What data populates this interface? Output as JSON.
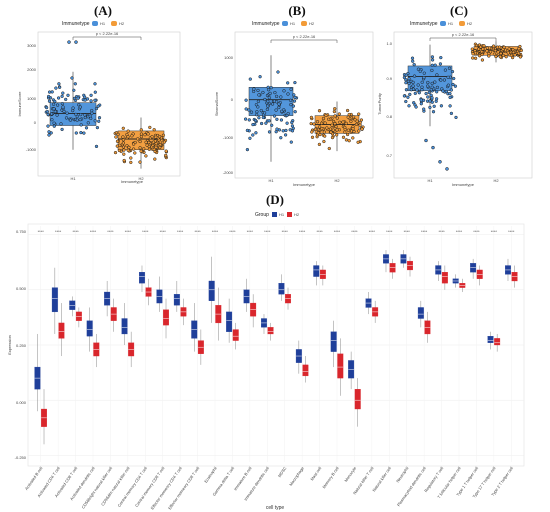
{
  "panels": {
    "A": {
      "label": "(A)",
      "legend_title": "Immunetype",
      "legend_items": [
        "H1",
        "H2"
      ],
      "pvalue": "p < 2.22e-16",
      "xlabel": "Immunetype",
      "ylabel": "ImmuneScore",
      "yticks": [
        "3000",
        "2000",
        "1000",
        "0",
        "-1000"
      ]
    },
    "B": {
      "label": "(B)",
      "legend_title": "Immunetype",
      "legend_items": [
        "H1",
        "H2"
      ],
      "pvalue": "p < 2.22e-16",
      "xlabel": "Immunetype",
      "ylabel": "StromalScore",
      "yticks": [
        "1000",
        "0",
        "-1000",
        "-2000"
      ]
    },
    "C": {
      "label": "(C)",
      "legend_title": "Immunetype",
      "legend_items": [
        "H1",
        "H2"
      ],
      "pvalue": "p < 2.22e-16",
      "xlabel": "Immunetype",
      "ylabel": "TumorPurity",
      "yticks": [
        "1.0",
        "0.9",
        "0.8",
        "0.7"
      ]
    },
    "D": {
      "label": "(D)",
      "legend_title": "Group",
      "legend_items": [
        "H1",
        "H2"
      ],
      "xlabel": "cell type",
      "ylabel": "Expression",
      "yticks": [
        "0.750",
        "0.500",
        "0.250",
        "0.000",
        "-0.250"
      ]
    }
  },
  "colors": {
    "A_H1": "#4a90d9",
    "A_H2": "#f29b38",
    "D_H1": "#1f3f9a",
    "D_H2": "#d9262c"
  },
  "chart_data": [
    {
      "type": "box",
      "panel": "A",
      "categories": [
        "H1",
        "H2"
      ],
      "title": "",
      "xlabel": "Immunetype",
      "ylabel": "ImmuneScore",
      "ylim": [
        -2000,
        3200
      ],
      "annotation": "p < 2.22e-16",
      "series": [
        {
          "name": "H1",
          "q1": -200,
          "median": 250,
          "q3": 650,
          "whisker_low": -1100,
          "whisker_high": 1800,
          "outliers": [
            2900,
            2900
          ]
        },
        {
          "name": "H2",
          "q1": -1100,
          "median": -700,
          "q3": -400,
          "whisker_low": -1800,
          "whisker_high": 100,
          "outliers": []
        }
      ]
    },
    {
      "type": "box",
      "panel": "B",
      "categories": [
        "H1",
        "H2"
      ],
      "title": "",
      "xlabel": "Immunetype",
      "ylabel": "StromalScore",
      "ylim": [
        -2600,
        1400
      ],
      "annotation": "p < 2.22e-16",
      "series": [
        {
          "name": "H1",
          "q1": -900,
          "median": -450,
          "q3": -100,
          "whisker_low": -2200,
          "whisker_high": 800,
          "outliers": []
        },
        {
          "name": "H2",
          "q1": -1400,
          "median": -1150,
          "q3": -900,
          "whisker_low": -1900,
          "whisker_high": -500,
          "outliers": []
        }
      ]
    },
    {
      "type": "box",
      "panel": "C",
      "categories": [
        "H1",
        "H2"
      ],
      "title": "",
      "xlabel": "Immunetype",
      "ylabel": "TumorPurity",
      "ylim": [
        0.62,
        1.02
      ],
      "annotation": "p < 2.22e-16",
      "series": [
        {
          "name": "H1",
          "q1": 0.86,
          "median": 0.9,
          "q3": 0.93,
          "whisker_low": 0.76,
          "whisker_high": 0.99,
          "outliers": [
            0.72,
            0.7,
            0.66,
            0.64
          ]
        },
        {
          "name": "H2",
          "q1": 0.96,
          "median": 0.975,
          "q3": 0.985,
          "whisker_low": 0.94,
          "whisker_high": 1.0,
          "outliers": []
        }
      ]
    },
    {
      "type": "box",
      "panel": "D",
      "xlabel": "cell type",
      "ylabel": "Expression",
      "ylim": [
        -0.28,
        0.78
      ],
      "series_names": [
        "H1",
        "H2"
      ],
      "categories": [
        "Activated B cell",
        "Activated CD4 T cell",
        "Activated CD8 T cell",
        "Activated dendritic cell",
        "CD56bright natural killer cell",
        "CD56dim natural killer cell",
        "Central memory CD4 T cell",
        "Central memory CD8 T cell",
        "Effector memeory CD4 T cell",
        "Effector memeory CD8 T cell",
        "Eosinophil",
        "Gamma delta T cell",
        "Immature B cell",
        "Immature dendritic cell",
        "MDSC",
        "Macrophage",
        "Mast cell",
        "Memory B cell",
        "Monocyte",
        "Natural killer T cell",
        "Natural killer cell",
        "Neutrophil",
        "Plasmacytoid dendritic cell",
        "Regulatory T cell",
        "T follicular helper cell",
        "Type 1 T helper cell",
        "Type 17 T helper cell",
        "Type 2 T helper cell"
      ],
      "significance": [
        "****",
        "****",
        "****",
        "****",
        "****",
        "****",
        "****",
        "****",
        "****",
        "****",
        "****",
        "****",
        "****",
        "****",
        "****",
        "****",
        "****",
        "****",
        "****",
        "****",
        "****",
        "****",
        "****",
        "****",
        "****",
        "****",
        "****",
        "****"
      ],
      "H1": [
        [
          0.05,
          0.1,
          0.15,
          -0.05,
          0.3
        ],
        [
          0.4,
          0.46,
          0.51,
          0.3,
          0.6
        ],
        [
          0.41,
          0.43,
          0.45,
          0.38,
          0.47
        ],
        [
          0.29,
          0.32,
          0.36,
          0.22,
          0.42
        ],
        [
          0.43,
          0.46,
          0.49,
          0.38,
          0.54
        ],
        [
          0.3,
          0.33,
          0.37,
          0.25,
          0.44
        ],
        [
          0.53,
          0.56,
          0.58,
          0.49,
          0.61
        ],
        [
          0.44,
          0.47,
          0.5,
          0.4,
          0.56
        ],
        [
          0.43,
          0.46,
          0.48,
          0.4,
          0.54
        ],
        [
          0.28,
          0.32,
          0.36,
          0.22,
          0.44
        ],
        [
          0.45,
          0.5,
          0.54,
          0.35,
          0.65
        ],
        [
          0.31,
          0.36,
          0.4,
          0.26,
          0.46
        ],
        [
          0.44,
          0.47,
          0.5,
          0.4,
          0.55
        ],
        [
          0.33,
          0.35,
          0.37,
          0.3,
          0.39
        ],
        [
          0.48,
          0.5,
          0.53,
          0.45,
          0.57
        ],
        [
          0.17,
          0.2,
          0.23,
          0.12,
          0.27
        ],
        [
          0.56,
          0.59,
          0.61,
          0.52,
          0.63
        ],
        [
          0.22,
          0.27,
          0.31,
          0.15,
          0.36
        ],
        [
          0.1,
          0.14,
          0.18,
          0.05,
          0.22
        ],
        [
          0.42,
          0.44,
          0.46,
          0.39,
          0.49
        ],
        [
          0.62,
          0.64,
          0.66,
          0.58,
          0.68
        ],
        [
          0.62,
          0.64,
          0.66,
          0.6,
          0.68
        ],
        [
          0.37,
          0.39,
          0.42,
          0.33,
          0.45
        ],
        [
          0.57,
          0.59,
          0.61,
          0.54,
          0.63
        ],
        [
          0.53,
          0.54,
          0.55,
          0.51,
          0.57
        ],
        [
          0.58,
          0.6,
          0.62,
          0.55,
          0.64
        ],
        [
          0.26,
          0.27,
          0.29,
          0.23,
          0.31
        ],
        [
          0.57,
          0.59,
          0.61,
          0.54,
          0.64
        ]
      ],
      "H2": [
        [
          -0.12,
          -0.08,
          -0.04,
          -0.2,
          0.05
        ],
        [
          0.28,
          0.31,
          0.35,
          0.2,
          0.44
        ],
        [
          0.36,
          0.38,
          0.4,
          0.33,
          0.42
        ],
        [
          0.2,
          0.23,
          0.26,
          0.15,
          0.3
        ],
        [
          0.36,
          0.39,
          0.42,
          0.31,
          0.46
        ],
        [
          0.2,
          0.23,
          0.26,
          0.15,
          0.31
        ],
        [
          0.47,
          0.49,
          0.51,
          0.43,
          0.55
        ],
        [
          0.34,
          0.37,
          0.41,
          0.28,
          0.46
        ],
        [
          0.38,
          0.4,
          0.42,
          0.34,
          0.46
        ],
        [
          0.21,
          0.24,
          0.27,
          0.16,
          0.32
        ],
        [
          0.35,
          0.39,
          0.43,
          0.27,
          0.51
        ],
        [
          0.27,
          0.29,
          0.32,
          0.23,
          0.35
        ],
        [
          0.38,
          0.41,
          0.44,
          0.33,
          0.48
        ],
        [
          0.3,
          0.31,
          0.33,
          0.27,
          0.35
        ],
        [
          0.44,
          0.46,
          0.48,
          0.41,
          0.51
        ],
        [
          0.11,
          0.13,
          0.16,
          0.08,
          0.2
        ],
        [
          0.55,
          0.57,
          0.59,
          0.52,
          0.61
        ],
        [
          0.1,
          0.15,
          0.21,
          0.02,
          0.28
        ],
        [
          -0.04,
          0.0,
          0.05,
          -0.12,
          0.1
        ],
        [
          0.38,
          0.4,
          0.42,
          0.35,
          0.45
        ],
        [
          0.58,
          0.6,
          0.62,
          0.55,
          0.64
        ],
        [
          0.59,
          0.61,
          0.63,
          0.56,
          0.65
        ],
        [
          0.3,
          0.33,
          0.36,
          0.26,
          0.4
        ],
        [
          0.53,
          0.56,
          0.58,
          0.5,
          0.61
        ],
        [
          0.51,
          0.52,
          0.53,
          0.49,
          0.55
        ],
        [
          0.55,
          0.57,
          0.59,
          0.52,
          0.61
        ],
        [
          0.25,
          0.26,
          0.28,
          0.22,
          0.3
        ],
        [
          0.54,
          0.56,
          0.58,
          0.51,
          0.61
        ]
      ]
    }
  ]
}
